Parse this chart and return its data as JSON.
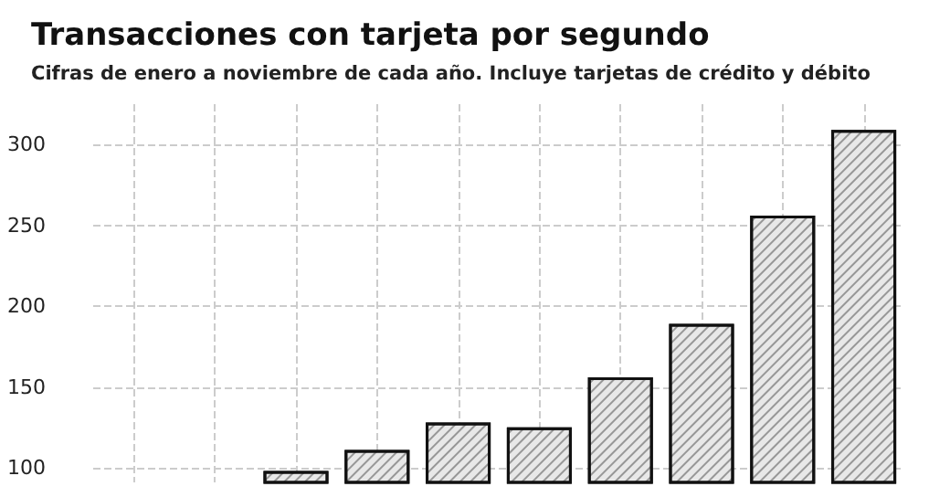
{
  "chart_data": {
    "type": "bar",
    "title": "Transacciones con tarjeta por segundo",
    "subtitle": "Cifras de enero a noviembre de cada año. Incluye tarjetas de crédito y débito",
    "categories": [
      null,
      null,
      null,
      null,
      null,
      null,
      null,
      null,
      null,
      null
    ],
    "values": [
      null,
      null,
      98,
      111,
      128,
      125,
      156,
      189,
      256,
      309
    ],
    "color": "#e8e8e8",
    "ylim": [
      91,
      325
    ],
    "yticks": [
      100,
      150,
      200,
      250,
      300
    ],
    "grid": true
  }
}
